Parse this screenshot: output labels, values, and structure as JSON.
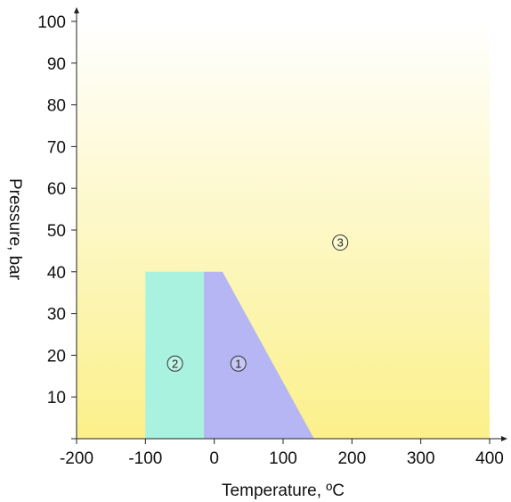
{
  "chart_data": {
    "type": "area",
    "title": "",
    "xlabel": "Temperature, ºC",
    "ylabel": "Pressure, bar",
    "xlim": [
      -200,
      400
    ],
    "ylim": [
      0,
      100
    ],
    "x_ticks": [
      -200,
      -100,
      0,
      100,
      200,
      300,
      400
    ],
    "y_ticks": [
      10,
      20,
      30,
      40,
      50,
      60,
      70,
      80,
      90,
      100
    ],
    "grid": false,
    "legend": "none",
    "background_gradient": {
      "top": "#ffffff",
      "bottom": "#fbf08a"
    },
    "regions": [
      {
        "label": "3",
        "color": "#fbf08a",
        "vertices": [
          [
            -200,
            0
          ],
          [
            400,
            0
          ],
          [
            400,
            100
          ],
          [
            -200,
            100
          ]
        ],
        "label_at": [
          183,
          47
        ]
      },
      {
        "label": "2",
        "color": "#a8f2df",
        "vertices": [
          [
            -100,
            0
          ],
          [
            -15,
            0
          ],
          [
            -15,
            40
          ],
          [
            -100,
            40
          ]
        ],
        "label_at": [
          -57,
          18
        ]
      },
      {
        "label": "1",
        "color": "#b5b6f3",
        "vertices": [
          [
            -15,
            0
          ],
          [
            145,
            0
          ],
          [
            12,
            40
          ],
          [
            -15,
            40
          ]
        ],
        "label_at": [
          35,
          18
        ]
      }
    ]
  }
}
